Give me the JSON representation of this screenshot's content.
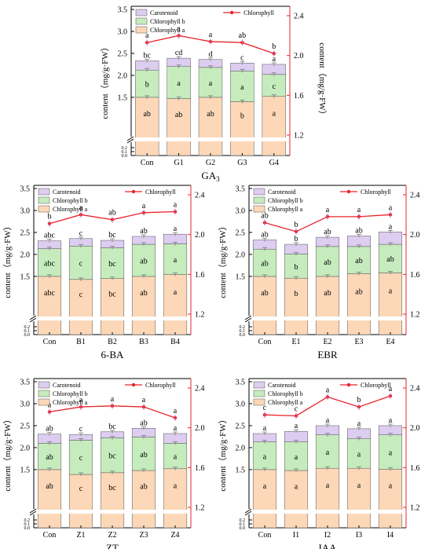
{
  "chart_data": [
    {
      "type": "bar",
      "title": "GA3",
      "categories": [
        "Con",
        "G1",
        "G2",
        "G3",
        "G4"
      ],
      "ylabel": "content（mg/g·FW）",
      "y2label": "content（mg/g·FW）",
      "ylim": [
        0,
        3.5
      ],
      "y_ticks": [
        "0.0",
        "0.1",
        "0.2",
        "1.5",
        "2.0",
        "2.5",
        "3.0",
        "3.5"
      ],
      "y2lim": [
        1.2,
        2.4
      ],
      "y2_ticks": [
        "1.2",
        "1.6",
        "2.0",
        "2.4"
      ],
      "legend": [
        "Carotenoid",
        "Chlorophyll b",
        "Chlorophyll a"
      ],
      "legend2": "Chlorophyll",
      "series": [
        {
          "name": "Chlorophyll a",
          "values": [
            1.5,
            1.47,
            1.5,
            1.4,
            1.52
          ],
          "labels": [
            "ab",
            "ab",
            "ab",
            "b",
            "a"
          ]
        },
        {
          "name": "Chlorophyll b",
          "values": [
            0.62,
            0.73,
            0.68,
            0.7,
            0.5
          ],
          "labels": [
            "b",
            "a",
            "a",
            "a",
            "c"
          ]
        },
        {
          "name": "Carotenoid",
          "values": [
            0.21,
            0.19,
            0.18,
            0.18,
            0.23
          ],
          "labels": [
            "bc",
            "cd",
            "d",
            "c",
            "a"
          ]
        },
        {
          "name": "Chlorophyll",
          "axis": "right",
          "values": [
            2.13,
            2.2,
            2.14,
            2.13,
            2.02
          ],
          "labels": [
            "a",
            "a",
            "a",
            "ab",
            "b"
          ]
        }
      ]
    },
    {
      "type": "bar",
      "title": "6-BA",
      "categories": [
        "Con",
        "B1",
        "B2",
        "B3",
        "B4"
      ],
      "ylabel": "content（mg/g·FW）",
      "ylim": [
        0,
        3.5
      ],
      "y_ticks": [
        "0.0",
        "0.1",
        "0.2",
        "1.5",
        "2.0",
        "2.5",
        "3.0",
        "3.5"
      ],
      "y2lim": [
        1.2,
        2.4
      ],
      "y2_ticks": [
        "1.2",
        "1.6",
        "2.0",
        "2.4"
      ],
      "legend": [
        "Carotenoid",
        "Chlorophyll b",
        "Chlorophyll a"
      ],
      "legend2": "Chlorophyll",
      "series": [
        {
          "name": "Chlorophyll a",
          "values": [
            1.5,
            1.43,
            1.45,
            1.5,
            1.54
          ],
          "labels": [
            "abc",
            "c",
            "bc",
            "ab",
            "a"
          ]
        },
        {
          "name": "Chlorophyll b",
          "values": [
            0.63,
            0.76,
            0.7,
            0.73,
            0.7
          ],
          "labels": [
            "abc",
            "c",
            "bc",
            "ab",
            "a"
          ]
        },
        {
          "name": "Carotenoid",
          "values": [
            0.18,
            0.17,
            0.17,
            0.18,
            0.22
          ],
          "labels": [
            "abc",
            "c",
            "bc",
            "ab",
            "a"
          ]
        },
        {
          "name": "Chlorophyll",
          "axis": "right",
          "values": [
            2.11,
            2.2,
            2.15,
            2.22,
            2.23
          ],
          "labels": [
            "b",
            "a",
            "ab",
            "a",
            "a"
          ]
        }
      ]
    },
    {
      "type": "bar",
      "title": "EBR",
      "categories": [
        "Con",
        "E1",
        "E2",
        "E3",
        "E4"
      ],
      "ylabel": "content（mg/g·FW）",
      "ylim": [
        0,
        3.5
      ],
      "y_ticks": [
        "0.0",
        "0.1",
        "0.2",
        "1.5",
        "2.0",
        "2.5",
        "3.0",
        "3.5"
      ],
      "y2lim": [
        1.2,
        2.4
      ],
      "y2_ticks": [
        "1.2",
        "1.6",
        "2.0",
        "2.4"
      ],
      "legend": [
        "Carotenoid",
        "Chlorophyll b",
        "Chlorophyll a"
      ],
      "legend2": "Chlorophyll",
      "series": [
        {
          "name": "Chlorophyll a",
          "values": [
            1.5,
            1.46,
            1.5,
            1.56,
            1.58
          ],
          "labels": [
            "ab",
            "b",
            "ab",
            "ab",
            "a"
          ]
        },
        {
          "name": "Chlorophyll b",
          "values": [
            0.62,
            0.55,
            0.68,
            0.62,
            0.65
          ],
          "labels": [
            "ab",
            "b",
            "ab",
            "ab",
            "ab"
          ]
        },
        {
          "name": "Carotenoid",
          "values": [
            0.21,
            0.22,
            0.21,
            0.24,
            0.28
          ],
          "labels": [
            "ab",
            "b",
            "ab",
            "ab",
            "a"
          ]
        },
        {
          "name": "Chlorophyll",
          "axis": "right",
          "values": [
            2.12,
            2.03,
            2.18,
            2.18,
            2.2
          ],
          "labels": [
            "ab",
            "b",
            "a",
            "a",
            "a"
          ]
        }
      ]
    },
    {
      "type": "bar",
      "title": "ZT",
      "categories": [
        "Con",
        "Z1",
        "Z2",
        "Z3",
        "Z4"
      ],
      "ylabel": "content（mg/g·FW）",
      "ylim": [
        0,
        3.5
      ],
      "y_ticks": [
        "0.0",
        "0.1",
        "0.2",
        "1.5",
        "2.0",
        "2.5",
        "3.0",
        "3.5"
      ],
      "y2lim": [
        1.2,
        2.4
      ],
      "y2_ticks": [
        "1.2",
        "1.6",
        "2.0",
        "2.4"
      ],
      "legend": [
        "Carotenoid",
        "Chlorophyll b",
        "Chlorophyll a"
      ],
      "legend2": "Chlorophyll",
      "series": [
        {
          "name": "Chlorophyll a",
          "values": [
            1.5,
            1.39,
            1.43,
            1.48,
            1.52
          ],
          "labels": [
            "ab",
            "c",
            "bc",
            "ab",
            "a"
          ]
        },
        {
          "name": "Chlorophyll b",
          "values": [
            0.6,
            0.78,
            0.79,
            0.76,
            0.58
          ],
          "labels": [
            "ab",
            "c",
            "bc",
            "ab",
            "a"
          ]
        },
        {
          "name": "Carotenoid",
          "values": [
            0.21,
            0.13,
            0.14,
            0.2,
            0.22
          ],
          "labels": [
            "ab",
            "c",
            "bc",
            "ab",
            "a"
          ]
        },
        {
          "name": "Chlorophyll",
          "axis": "right",
          "values": [
            2.16,
            2.21,
            2.22,
            2.21,
            2.1
          ],
          "labels": [
            "a",
            "a",
            "a",
            "a",
            "a"
          ]
        }
      ]
    },
    {
      "type": "bar",
      "title": "IAA",
      "categories": [
        "Con",
        "I1",
        "I2",
        "I3",
        "I4"
      ],
      "ylabel": "content（mg/g·FW）",
      "ylim": [
        0,
        3.5
      ],
      "y_ticks": [
        "0.0",
        "0.1",
        "0.2",
        "1.5",
        "2.0",
        "2.5",
        "3.0",
        "3.5"
      ],
      "y2lim": [
        1.2,
        2.4
      ],
      "y2_ticks": [
        "1.2",
        "1.6",
        "2.0",
        "2.4"
      ],
      "legend": [
        "Carotenoid",
        "Chlorophyll b",
        "Chlorophyll a"
      ],
      "legend2": "Chlorophyll",
      "series": [
        {
          "name": "Chlorophyll a",
          "values": [
            1.5,
            1.48,
            1.53,
            1.53,
            1.51
          ],
          "labels": [
            "a",
            "a",
            "a",
            "a",
            "a"
          ]
        },
        {
          "name": "Chlorophyll b",
          "values": [
            0.63,
            0.65,
            0.76,
            0.67,
            0.78
          ],
          "labels": [
            "a",
            "a",
            "a",
            "a",
            "a"
          ]
        },
        {
          "name": "Carotenoid",
          "values": [
            0.19,
            0.24,
            0.21,
            0.23,
            0.21
          ],
          "labels": [
            "a",
            "a",
            "a",
            "a",
            "a"
          ]
        },
        {
          "name": "Chlorophyll",
          "axis": "right",
          "values": [
            2.13,
            2.12,
            2.31,
            2.21,
            2.32
          ],
          "labels": [
            "c",
            "c",
            "a",
            "b",
            "a"
          ]
        }
      ]
    }
  ],
  "colors": {
    "chl_a": "#fcd8b8",
    "chl_b": "#c6ecbe",
    "carotenoid": "#ddcdf0",
    "line": "#e8242a",
    "bar_edge": "#555555"
  }
}
